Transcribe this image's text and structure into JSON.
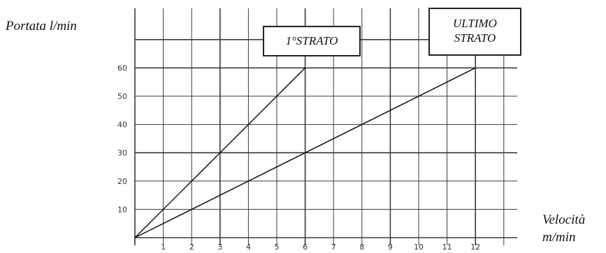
{
  "chart_data": {
    "type": "line",
    "ylabel": "Portata l/min",
    "xlabel_line1": "Velocità",
    "xlabel_line2": "m/min",
    "x_ticks": [
      "1",
      "2",
      "3",
      "4",
      "5",
      "6",
      "7",
      "8",
      "9",
      "10",
      "11",
      "12"
    ],
    "y_ticks": [
      "10",
      "20",
      "30",
      "40",
      "50",
      "60"
    ],
    "xlim": [
      0,
      13
    ],
    "ylim": [
      0,
      70
    ],
    "grid": true,
    "series": [
      {
        "name": "1°STRATO",
        "x": [
          0,
          6
        ],
        "y": [
          0,
          60
        ]
      },
      {
        "name": "ULTIMO STRATO",
        "x": [
          0,
          12
        ],
        "y": [
          0,
          60
        ]
      }
    ],
    "annotations": {
      "first_layer": "1°STRATO",
      "last_layer_line1": "ULTIMO",
      "last_layer_line2": "STRATO"
    }
  }
}
